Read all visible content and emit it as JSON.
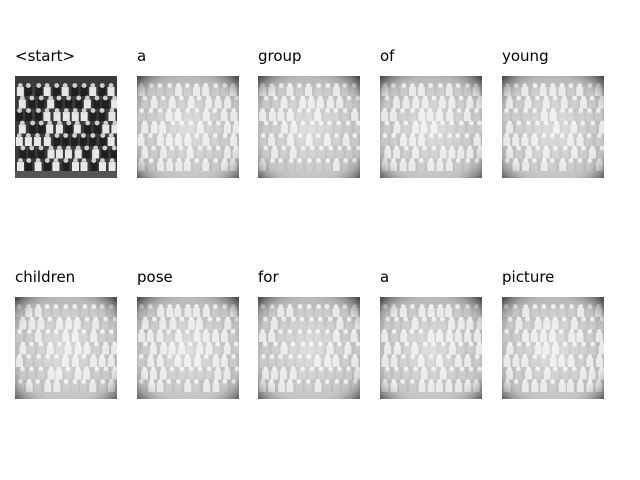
{
  "caption_steps": [
    {
      "word": "<start>",
      "image": "original-photo"
    },
    {
      "word": "a",
      "image": "attention-overlay"
    },
    {
      "word": "group",
      "image": "attention-overlay"
    },
    {
      "word": "of",
      "image": "attention-overlay"
    },
    {
      "word": "young",
      "image": "attention-overlay"
    },
    {
      "word": "children",
      "image": "attention-overlay"
    },
    {
      "word": "pose",
      "image": "attention-overlay"
    },
    {
      "word": "for",
      "image": "attention-overlay"
    },
    {
      "word": "a",
      "image": "attention-overlay"
    },
    {
      "word": "picture",
      "image": "attention-overlay"
    }
  ]
}
